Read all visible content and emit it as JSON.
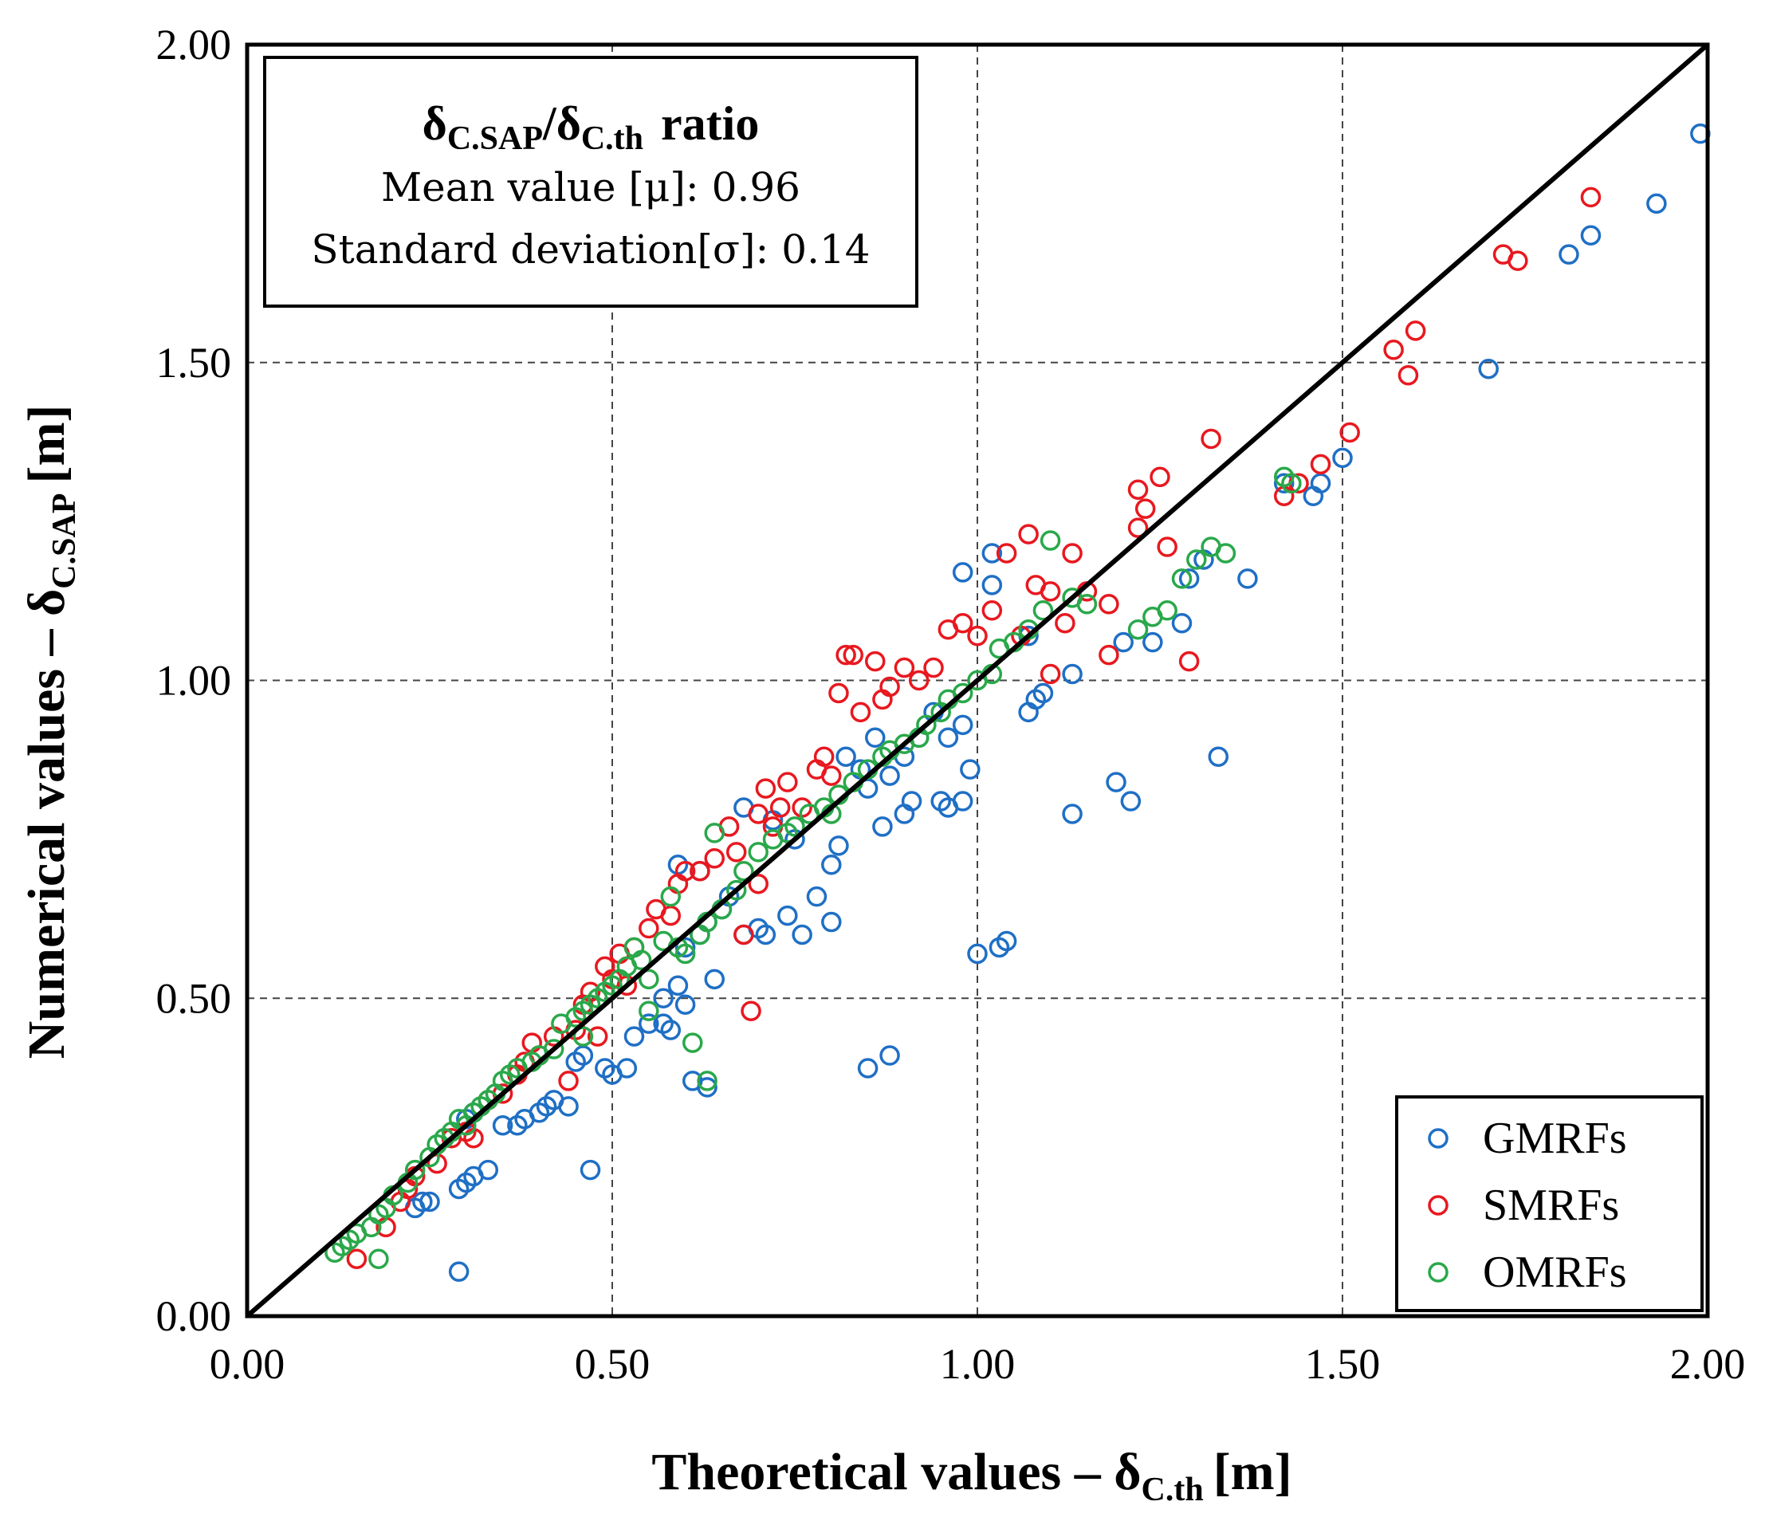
{
  "chart_data": {
    "type": "scatter",
    "x_axis": {
      "label_main": "Theoretical values – δ",
      "label_sub": "C.th",
      "label_unit": "[m]",
      "range": [
        0,
        2
      ],
      "ticks": [
        "0.00",
        "0.50",
        "1.00",
        "1.50",
        "2.00"
      ]
    },
    "y_axis": {
      "label_main": "Numerical values – δ",
      "label_sub": "C.SAP",
      "label_unit": "[m]",
      "range": [
        0,
        2
      ],
      "ticks": [
        "0.00",
        "0.50",
        "1.00",
        "1.50",
        "2.00"
      ]
    },
    "grid": true,
    "reference_line": {
      "from": [
        0,
        0
      ],
      "to": [
        2,
        2
      ]
    },
    "stats_box": {
      "title_delta1": "δ",
      "title_sub1": "C.SAP",
      "title_slash": "/",
      "title_delta2": "δ",
      "title_sub2": "C.th",
      "title_word": "ratio",
      "mean_line": "Mean value [μ]: 0.96",
      "std_line": "Standard deviation[σ]: 0.14"
    },
    "legend_position": "bottom-right",
    "series": [
      {
        "name": "GMRFs",
        "color": "#1f6fc5",
        "points": [
          [
            0.29,
            0.07
          ],
          [
            0.23,
            0.17
          ],
          [
            0.24,
            0.18
          ],
          [
            0.25,
            0.18
          ],
          [
            0.29,
            0.2
          ],
          [
            0.3,
            0.21
          ],
          [
            0.31,
            0.22
          ],
          [
            0.33,
            0.23
          ],
          [
            0.47,
            0.23
          ],
          [
            0.3,
            0.31
          ],
          [
            0.31,
            0.32
          ],
          [
            0.35,
            0.3
          ],
          [
            0.37,
            0.3
          ],
          [
            0.38,
            0.31
          ],
          [
            0.4,
            0.32
          ],
          [
            0.41,
            0.33
          ],
          [
            0.42,
            0.34
          ],
          [
            0.44,
            0.33
          ],
          [
            0.45,
            0.4
          ],
          [
            0.46,
            0.41
          ],
          [
            0.49,
            0.39
          ],
          [
            0.5,
            0.38
          ],
          [
            0.52,
            0.39
          ],
          [
            0.53,
            0.44
          ],
          [
            0.55,
            0.46
          ],
          [
            0.57,
            0.46
          ],
          [
            0.58,
            0.45
          ],
          [
            0.6,
            0.49
          ],
          [
            0.59,
            0.52
          ],
          [
            0.61,
            0.37
          ],
          [
            0.63,
            0.36
          ],
          [
            0.57,
            0.5
          ],
          [
            0.6,
            0.58
          ],
          [
            0.62,
            0.6
          ],
          [
            0.63,
            0.62
          ],
          [
            0.64,
            0.53
          ],
          [
            0.65,
            0.64
          ],
          [
            0.66,
            0.66
          ],
          [
            0.68,
            0.6
          ],
          [
            0.7,
            0.61
          ],
          [
            0.71,
            0.6
          ],
          [
            0.74,
            0.63
          ],
          [
            0.76,
            0.6
          ],
          [
            0.78,
            0.66
          ],
          [
            0.8,
            0.62
          ],
          [
            0.59,
            0.71
          ],
          [
            0.62,
            0.7
          ],
          [
            0.68,
            0.8
          ],
          [
            0.72,
            0.78
          ],
          [
            0.75,
            0.75
          ],
          [
            0.8,
            0.71
          ],
          [
            0.81,
            0.74
          ],
          [
            0.85,
            0.83
          ],
          [
            0.87,
            0.77
          ],
          [
            0.9,
            0.79
          ],
          [
            0.91,
            0.81
          ],
          [
            0.95,
            0.81
          ],
          [
            0.96,
            0.8
          ],
          [
            0.98,
            0.81
          ],
          [
            0.99,
            0.86
          ],
          [
            0.82,
            0.88
          ],
          [
            0.84,
            0.86
          ],
          [
            0.86,
            0.91
          ],
          [
            0.88,
            0.85
          ],
          [
            0.9,
            0.88
          ],
          [
            0.92,
            0.91
          ],
          [
            0.94,
            0.95
          ],
          [
            0.96,
            0.91
          ],
          [
            0.98,
            0.93
          ],
          [
            1.07,
            0.95
          ],
          [
            1.08,
            0.97
          ],
          [
            1.09,
            0.98
          ],
          [
            1.13,
            1.01
          ],
          [
            1.2,
            1.06
          ],
          [
            1.24,
            1.06
          ],
          [
            1.28,
            1.09
          ],
          [
            1.07,
            1.07
          ],
          [
            1.02,
            1.2
          ],
          [
            0.98,
            1.17
          ],
          [
            1.02,
            1.15
          ],
          [
            1.29,
            1.16
          ],
          [
            1.31,
            1.19
          ],
          [
            1.37,
            1.16
          ],
          [
            1.33,
            0.88
          ],
          [
            1.19,
            0.84
          ],
          [
            1.21,
            0.81
          ],
          [
            1.13,
            0.79
          ],
          [
            1.0,
            0.57
          ],
          [
            1.03,
            0.58
          ],
          [
            1.04,
            0.59
          ],
          [
            0.85,
            0.39
          ],
          [
            0.88,
            0.41
          ],
          [
            1.42,
            1.31
          ],
          [
            1.46,
            1.29
          ],
          [
            1.47,
            1.31
          ],
          [
            1.5,
            1.35
          ],
          [
            1.7,
            1.49
          ],
          [
            1.81,
            1.67
          ],
          [
            1.84,
            1.7
          ],
          [
            1.93,
            1.75
          ],
          [
            1.99,
            1.86
          ]
        ]
      },
      {
        "name": "SMRFs",
        "color": "#e8181f",
        "points": [
          [
            0.15,
            0.09
          ],
          [
            0.19,
            0.14
          ],
          [
            0.21,
            0.18
          ],
          [
            0.22,
            0.2
          ],
          [
            0.23,
            0.22
          ],
          [
            0.26,
            0.24
          ],
          [
            0.28,
            0.28
          ],
          [
            0.3,
            0.29
          ],
          [
            0.31,
            0.28
          ],
          [
            0.33,
            0.34
          ],
          [
            0.35,
            0.35
          ],
          [
            0.37,
            0.38
          ],
          [
            0.38,
            0.4
          ],
          [
            0.39,
            0.43
          ],
          [
            0.4,
            0.41
          ],
          [
            0.42,
            0.44
          ],
          [
            0.44,
            0.37
          ],
          [
            0.45,
            0.45
          ],
          [
            0.46,
            0.49
          ],
          [
            0.47,
            0.51
          ],
          [
            0.48,
            0.44
          ],
          [
            0.49,
            0.55
          ],
          [
            0.5,
            0.53
          ],
          [
            0.51,
            0.57
          ],
          [
            0.52,
            0.52
          ],
          [
            0.53,
            0.58
          ],
          [
            0.55,
            0.61
          ],
          [
            0.56,
            0.64
          ],
          [
            0.58,
            0.63
          ],
          [
            0.59,
            0.68
          ],
          [
            0.6,
            0.7
          ],
          [
            0.62,
            0.7
          ],
          [
            0.64,
            0.72
          ],
          [
            0.66,
            0.77
          ],
          [
            0.67,
            0.73
          ],
          [
            0.68,
            0.6
          ],
          [
            0.7,
            0.79
          ],
          [
            0.71,
            0.83
          ],
          [
            0.72,
            0.77
          ],
          [
            0.73,
            0.8
          ],
          [
            0.74,
            0.84
          ],
          [
            0.69,
            0.48
          ],
          [
            0.7,
            0.68
          ],
          [
            0.76,
            0.8
          ],
          [
            0.78,
            0.86
          ],
          [
            0.79,
            0.88
          ],
          [
            0.8,
            0.85
          ],
          [
            0.81,
            0.98
          ],
          [
            0.82,
            1.04
          ],
          [
            0.83,
            1.04
          ],
          [
            0.84,
            0.95
          ],
          [
            0.86,
            1.03
          ],
          [
            0.87,
            0.97
          ],
          [
            0.88,
            0.99
          ],
          [
            0.9,
            1.02
          ],
          [
            0.92,
            1.0
          ],
          [
            0.94,
            1.02
          ],
          [
            0.96,
            1.08
          ],
          [
            0.98,
            1.09
          ],
          [
            1.0,
            1.07
          ],
          [
            1.02,
            1.11
          ],
          [
            1.04,
            1.2
          ],
          [
            1.06,
            1.07
          ],
          [
            1.07,
            1.23
          ],
          [
            1.08,
            1.15
          ],
          [
            1.1,
            1.14
          ],
          [
            1.13,
            1.2
          ],
          [
            1.15,
            1.14
          ],
          [
            1.18,
            1.12
          ],
          [
            1.22,
            1.24
          ],
          [
            1.23,
            1.27
          ],
          [
            1.25,
            1.32
          ],
          [
            1.26,
            1.21
          ],
          [
            1.22,
            1.3
          ],
          [
            1.29,
            1.03
          ],
          [
            1.32,
            1.38
          ],
          [
            1.1,
            1.01
          ],
          [
            1.12,
            1.09
          ],
          [
            1.18,
            1.04
          ],
          [
            1.42,
            1.29
          ],
          [
            1.44,
            1.31
          ],
          [
            1.47,
            1.34
          ],
          [
            1.51,
            1.39
          ],
          [
            1.57,
            1.52
          ],
          [
            1.59,
            1.48
          ],
          [
            1.6,
            1.55
          ],
          [
            1.72,
            1.67
          ],
          [
            1.74,
            1.66
          ],
          [
            1.84,
            1.76
          ]
        ]
      },
      {
        "name": "OMRFs",
        "color": "#2aa84a",
        "points": [
          [
            0.12,
            0.1
          ],
          [
            0.13,
            0.11
          ],
          [
            0.14,
            0.12
          ],
          [
            0.15,
            0.13
          ],
          [
            0.17,
            0.14
          ],
          [
            0.18,
            0.09
          ],
          [
            0.18,
            0.16
          ],
          [
            0.19,
            0.17
          ],
          [
            0.2,
            0.19
          ],
          [
            0.22,
            0.21
          ],
          [
            0.23,
            0.23
          ],
          [
            0.25,
            0.25
          ],
          [
            0.26,
            0.27
          ],
          [
            0.27,
            0.28
          ],
          [
            0.28,
            0.29
          ],
          [
            0.29,
            0.31
          ],
          [
            0.3,
            0.3
          ],
          [
            0.31,
            0.32
          ],
          [
            0.32,
            0.33
          ],
          [
            0.33,
            0.34
          ],
          [
            0.34,
            0.35
          ],
          [
            0.35,
            0.37
          ],
          [
            0.36,
            0.38
          ],
          [
            0.37,
            0.39
          ],
          [
            0.39,
            0.4
          ],
          [
            0.4,
            0.41
          ],
          [
            0.42,
            0.42
          ],
          [
            0.43,
            0.46
          ],
          [
            0.45,
            0.47
          ],
          [
            0.46,
            0.48
          ],
          [
            0.47,
            0.49
          ],
          [
            0.48,
            0.5
          ],
          [
            0.49,
            0.51
          ],
          [
            0.5,
            0.52
          ],
          [
            0.51,
            0.53
          ],
          [
            0.52,
            0.55
          ],
          [
            0.53,
            0.58
          ],
          [
            0.54,
            0.56
          ],
          [
            0.55,
            0.53
          ],
          [
            0.57,
            0.59
          ],
          [
            0.58,
            0.66
          ],
          [
            0.59,
            0.58
          ],
          [
            0.6,
            0.57
          ],
          [
            0.61,
            0.43
          ],
          [
            0.62,
            0.6
          ],
          [
            0.63,
            0.62
          ],
          [
            0.64,
            0.76
          ],
          [
            0.65,
            0.64
          ],
          [
            0.67,
            0.67
          ],
          [
            0.68,
            0.7
          ],
          [
            0.7,
            0.73
          ],
          [
            0.72,
            0.75
          ],
          [
            0.74,
            0.76
          ],
          [
            0.75,
            0.77
          ],
          [
            0.77,
            0.79
          ],
          [
            0.79,
            0.8
          ],
          [
            0.8,
            0.79
          ],
          [
            0.81,
            0.82
          ],
          [
            0.83,
            0.84
          ],
          [
            0.85,
            0.86
          ],
          [
            0.87,
            0.88
          ],
          [
            0.88,
            0.89
          ],
          [
            0.9,
            0.9
          ],
          [
            0.92,
            0.91
          ],
          [
            0.93,
            0.93
          ],
          [
            0.95,
            0.95
          ],
          [
            0.96,
            0.97
          ],
          [
            0.98,
            0.98
          ],
          [
            1.0,
            1.0
          ],
          [
            1.02,
            1.01
          ],
          [
            1.03,
            1.05
          ],
          [
            1.05,
            1.06
          ],
          [
            1.07,
            1.08
          ],
          [
            1.09,
            1.11
          ],
          [
            1.1,
            1.22
          ],
          [
            1.13,
            1.13
          ],
          [
            1.15,
            1.12
          ],
          [
            1.22,
            1.08
          ],
          [
            1.24,
            1.1
          ],
          [
            1.26,
            1.11
          ],
          [
            1.28,
            1.16
          ],
          [
            1.3,
            1.19
          ],
          [
            1.32,
            1.21
          ],
          [
            1.34,
            1.2
          ],
          [
            1.42,
            1.32
          ],
          [
            1.43,
            1.31
          ],
          [
            0.63,
            0.37
          ],
          [
            0.46,
            0.44
          ],
          [
            0.55,
            0.48
          ]
        ]
      }
    ]
  }
}
